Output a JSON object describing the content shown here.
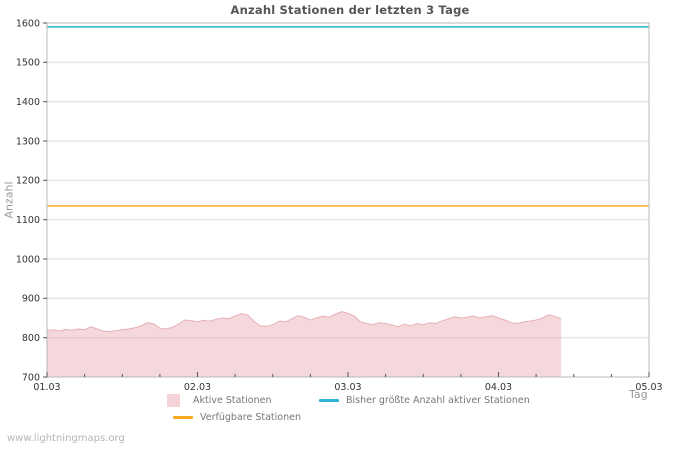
{
  "watermark": "www.lightningmaps.org",
  "chart_data": {
    "type": "area",
    "title": "Anzahl Stationen der letzten 3 Tage",
    "xlabel": "Tag",
    "ylabel": "Anzahl",
    "ylim": [
      700,
      1600
    ],
    "ytick_step": 100,
    "grid": "horizontal",
    "legend_position": "bottom",
    "x_axis": {
      "tick_labels": [
        "01.03",
        "02.03",
        "03.03",
        "04.03",
        "05.03"
      ],
      "span_days": 4,
      "minor_tick_hours": 6
    },
    "axis_colors": {
      "border": "#b8b8b8",
      "gridline": "#dcdcdc",
      "tick": "#555555",
      "tick_label": "#333333"
    },
    "series": [
      {
        "name": "Aktive Stationen",
        "kind": "area",
        "color": "#e7b0ba",
        "fill_color": "#e8a8b2",
        "fill_opacity": 0.45,
        "legend_color": "#f4d2d7",
        "start_day_offset": 0,
        "step_hours": 1,
        "values": [
          818,
          820,
          817,
          821,
          819,
          822,
          820,
          828,
          822,
          817,
          815,
          818,
          820,
          822,
          825,
          830,
          838,
          835,
          824,
          822,
          826,
          835,
          845,
          843,
          840,
          844,
          842,
          847,
          850,
          848,
          855,
          861,
          858,
          842,
          830,
          829,
          833,
          842,
          840,
          848,
          856,
          852,
          845,
          850,
          855,
          852,
          860,
          866,
          862,
          855,
          840,
          836,
          833,
          838,
          836,
          832,
          828,
          834,
          830,
          836,
          833,
          838,
          836,
          843,
          848,
          853,
          850,
          852,
          855,
          850,
          853,
          856,
          850,
          845,
          838,
          836,
          840,
          842,
          845,
          850,
          858,
          854,
          848
        ]
      },
      {
        "name": "Verfügbare Stationen",
        "kind": "hline",
        "color": "#fbab20",
        "value": 1135
      },
      {
        "name": "Bisher größte Anzahl aktiver Stationen",
        "kind": "hline",
        "color": "#2cb4d4",
        "value": 1590
      }
    ]
  }
}
